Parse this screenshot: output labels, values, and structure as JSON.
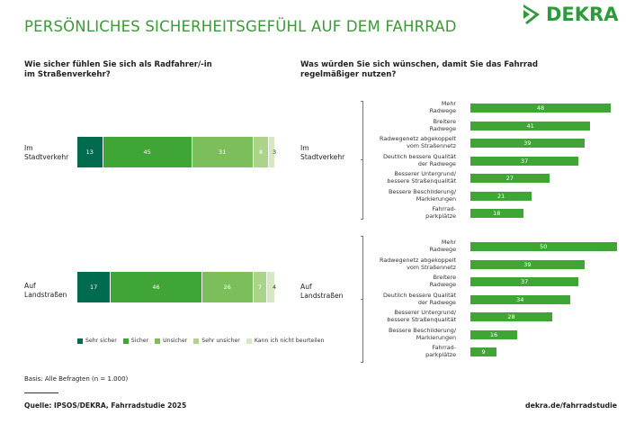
{
  "title": "PERSÖNLICHES SICHERHEITSGEFÜHL AUF DEM FAHRRAD",
  "logo": {
    "text": "DEKRA",
    "color": "#2e9a3b"
  },
  "chart_data": [
    {
      "type": "bar",
      "orientation": "horizontal-stacked",
      "title": "Wie sicher fühlen Sie sich als Radfahrer/-in im Straßenverkehr?",
      "categories": [
        "Im Stadtverkehr",
        "Auf Landstraßen"
      ],
      "series": [
        {
          "name": "Sehr sicher",
          "color": "#006b4f",
          "values": [
            13,
            17
          ]
        },
        {
          "name": "Sicher",
          "color": "#3fa535",
          "values": [
            45,
            46
          ]
        },
        {
          "name": "Unsicher",
          "color": "#7cbf5a",
          "values": [
            31,
            26
          ]
        },
        {
          "name": "Sehr unsicher",
          "color": "#a9d48a",
          "values": [
            8,
            7
          ]
        },
        {
          "name": "Kann ich nicht beurteilen",
          "color": "#d4e8c2",
          "values": [
            3,
            4
          ]
        }
      ],
      "xlim": [
        0,
        100
      ],
      "legend": "bottom"
    },
    {
      "type": "bar",
      "orientation": "horizontal",
      "title": "Was würden Sie sich wünschen, damit Sie das Fahrrad regelmäßiger nutzen?",
      "groups": [
        {
          "name": "Im Stadtverkehr",
          "categories": [
            "Mehr Radwege",
            "Breitere Radwege",
            "Radwegenetz abgekoppelt vom Straßennetz",
            "Deutlich bessere Qualität der Radwege",
            "Besserer Untergrund/ bessere Straßenqualität",
            "Bessere Beschilderung/ Markierungen",
            "Fahrrad- parkplätze"
          ],
          "values": [
            48,
            41,
            39,
            37,
            27,
            21,
            18
          ]
        },
        {
          "name": "Auf Landstraßen",
          "categories": [
            "Mehr Radwege",
            "Radwegenetz abgekoppelt vom Straßennetz",
            "Breitere Radwege",
            "Deutlich bessere Qualität der Radwege",
            "Besserer Untergrund/ bessere Straßenqualität",
            "Bessere Beschilderung/ Markierungen",
            "Fahrrad- parkplätze"
          ],
          "values": [
            50,
            39,
            37,
            34,
            28,
            16,
            9
          ]
        }
      ],
      "color": "#3fa535",
      "xlim": [
        0,
        50
      ]
    }
  ],
  "left_question": [
    "Wie sicher fühlen Sie sich als Radfahrer/-in",
    "im Straßenverkehr?"
  ],
  "right_question": [
    "Was würden Sie sich wünschen, damit Sie das Fahrrad",
    "regelmäßiger nutzen?"
  ],
  "left_labels": [
    [
      "Im",
      "Stadtverkehr"
    ],
    [
      "Auf",
      "Landstraßen"
    ]
  ],
  "right_group_labels": [
    [
      "Im",
      "Stadtverkehr"
    ],
    [
      "Auf",
      "Landstraßen"
    ]
  ],
  "right_labels": [
    [
      [
        "Mehr",
        "Radwege"
      ],
      [
        "Breitere",
        "Radwege"
      ],
      [
        "Radwegenetz abgekoppelt",
        "vom Straßennetz"
      ],
      [
        "Deutlich bessere Qualität",
        "der Radwege"
      ],
      [
        "Besserer Untergrund/",
        "bessere Straßenqualität"
      ],
      [
        "Bessere Beschilderung/",
        "Markierungen"
      ],
      [
        "Fahrrad-",
        "parkplätze"
      ]
    ],
    [
      [
        "Mehr",
        "Radwege"
      ],
      [
        "Radwegenetz abgekoppelt",
        "vom Straßennetz"
      ],
      [
        "Breitere",
        "Radwege"
      ],
      [
        "Deutlich bessere Qualität",
        "der Radwege"
      ],
      [
        "Besserer Untergrund/",
        "bessere Straßenqualität"
      ],
      [
        "Bessere Beschilderung/",
        "Markierungen"
      ],
      [
        "Fahrrad-",
        "parkplätze"
      ]
    ]
  ],
  "basis": "Basis: Alle Befragten (n = 1.000)",
  "source": "Quelle: IPSOS/DEKRA, Fahrradstudie 2025",
  "url": "dekra.de/fahrradstudie"
}
